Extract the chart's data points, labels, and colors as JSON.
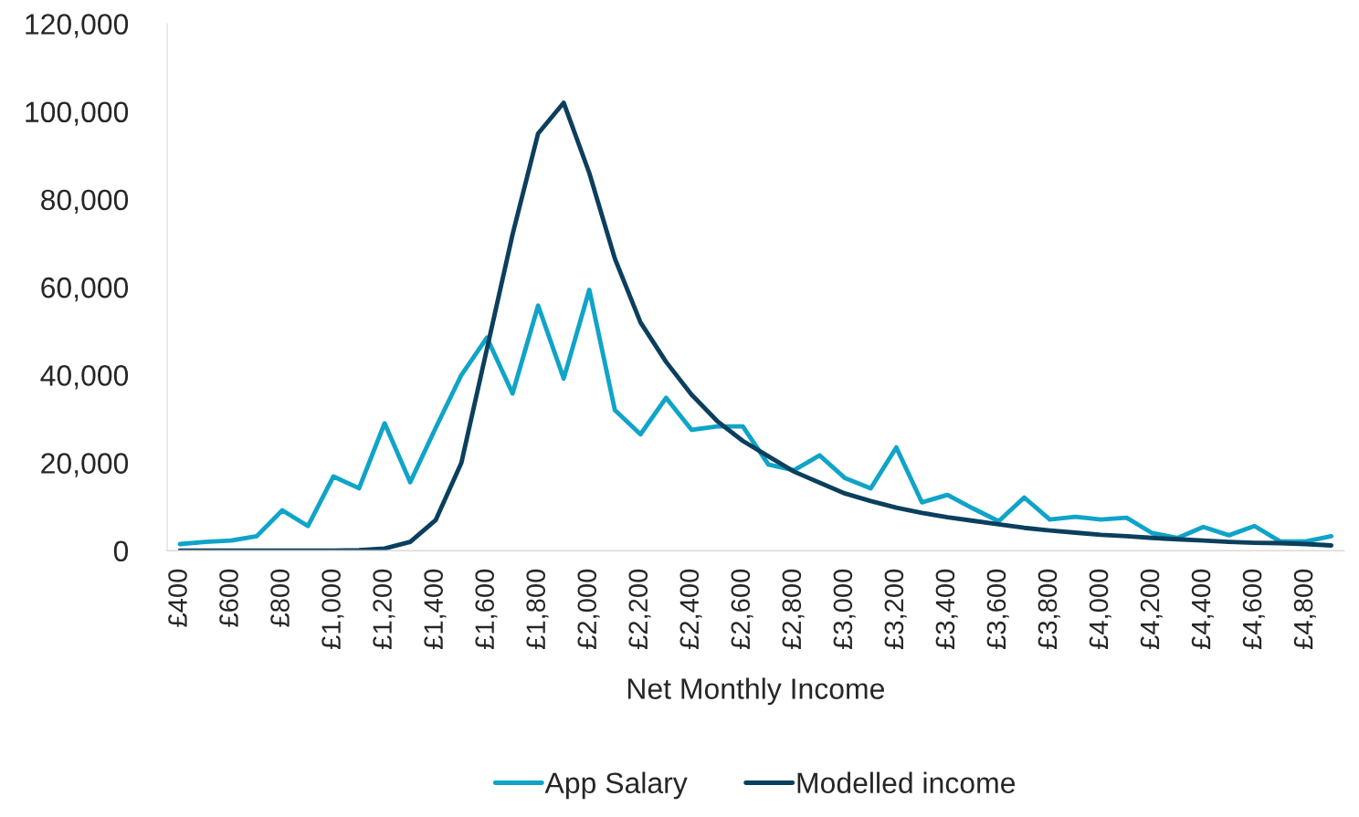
{
  "chart_data": {
    "type": "line",
    "xlabel": "Net Monthly Income",
    "categories": [
      "£400",
      null,
      "£600",
      null,
      "£800",
      null,
      "£1,000",
      null,
      "£1,200",
      null,
      "£1,400",
      null,
      "£1,600",
      null,
      "£1,800",
      null,
      "£2,000",
      null,
      "£2,200",
      null,
      "£2,400",
      null,
      "£2,600",
      null,
      "£2,800",
      null,
      "£3,000",
      null,
      "£3,200",
      null,
      "£3,400",
      null,
      "£3,600",
      null,
      "£3,800",
      null,
      "£4,000",
      null,
      "£4,200",
      null,
      "£4,400",
      null,
      "£4,600",
      null,
      "£4,800",
      null
    ],
    "series": [
      {
        "name": "App Salary",
        "color": "#0fa4c8",
        "values": [
          1500,
          2000,
          2300,
          3300,
          9200,
          5600,
          16900,
          14200,
          29000,
          15600,
          28000,
          40000,
          48500,
          35800,
          55800,
          39200,
          59400,
          32000,
          26500,
          34800,
          27500,
          28300,
          28300,
          19600,
          18300,
          21700,
          16500,
          14200,
          23500,
          11000,
          12700,
          9600,
          6700,
          12100,
          7100,
          7700,
          7100,
          7500,
          4000,
          2900,
          5400,
          3500,
          5600,
          2100,
          2100,
          3300
        ]
      },
      {
        "name": "Modelled income",
        "color": "#0b3f5e",
        "values": [
          0,
          0,
          0,
          0,
          0,
          0,
          0,
          100,
          500,
          2000,
          7000,
          20000,
          46000,
          72000,
          95000,
          102000,
          86000,
          66500,
          52000,
          43000,
          35500,
          29500,
          25000,
          21500,
          18000,
          15500,
          13000,
          11300,
          9800,
          8600,
          7600,
          6800,
          6000,
          5200,
          4600,
          4100,
          3600,
          3300,
          2900,
          2600,
          2300,
          2000,
          1800,
          1700,
          1500,
          1200
        ]
      }
    ],
    "ylim": [
      0,
      120000
    ],
    "yticks": [
      0,
      {
        "value": 20000,
        "label": "20,000"
      },
      {
        "value": 40000,
        "label": "40,000"
      },
      {
        "value": 60000,
        "label": "60,000"
      },
      {
        "value": 80000,
        "label": "80,000"
      },
      {
        "value": 100000,
        "label": "100,000"
      },
      {
        "value": 120000,
        "label": "120,000"
      }
    ],
    "grid": false,
    "legend": "bottom",
    "marker": "none",
    "line_style": "solid"
  }
}
